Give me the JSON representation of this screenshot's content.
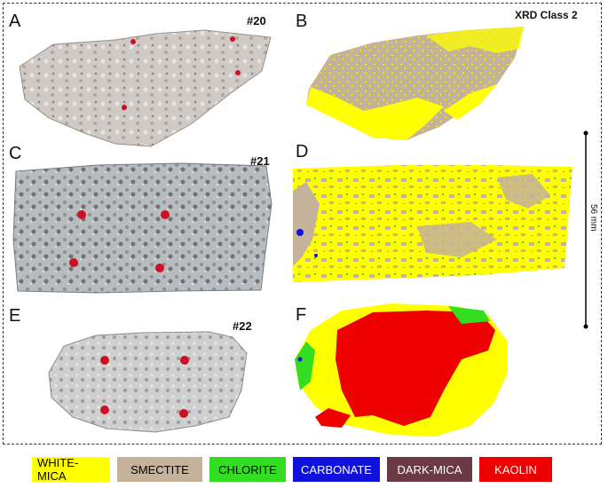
{
  "panels": {
    "A": "A",
    "B": "B",
    "C": "C",
    "D": "D",
    "E": "E",
    "F": "F"
  },
  "sample_ids": {
    "s20": "#20",
    "s21": "#21",
    "s22": "#22"
  },
  "xrd_class": "XRD Class 2",
  "scale": "56 mm",
  "legend": [
    {
      "label": "WHITE-MICA",
      "color": "#ffff00",
      "text_color": "#000000"
    },
    {
      "label": "SMECTITE",
      "color": "#c4b29a",
      "text_color": "#000000"
    },
    {
      "label": "CHLORITE",
      "color": "#33dd22",
      "text_color": "#000000"
    },
    {
      "label": "CARBONATE",
      "color": "#1111dd",
      "text_color": "#ffffff"
    },
    {
      "label": "DARK-MICA",
      "color": "#6b3a44",
      "text_color": "#ffffff"
    },
    {
      "label": "KAOLIN",
      "color": "#ee0000",
      "text_color": "#ffffff"
    }
  ]
}
